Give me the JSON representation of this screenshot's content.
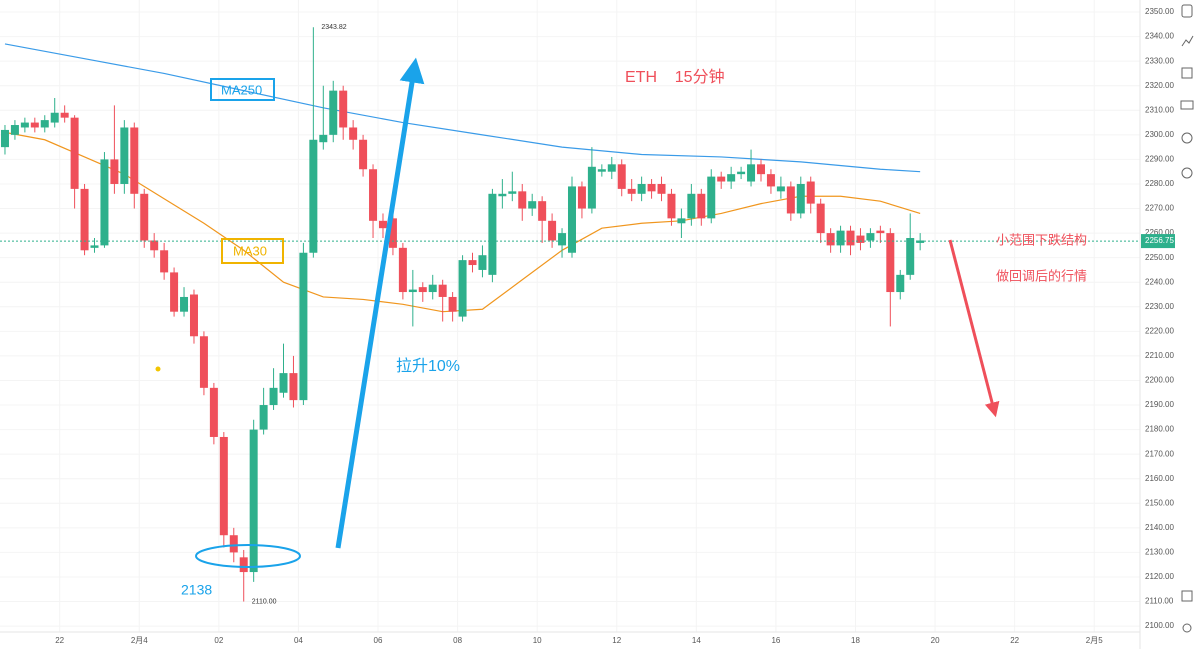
{
  "chart_data": {
    "type": "candlestick",
    "title": "ETH    15分钟",
    "up_color": "#2eb08c",
    "down_color": "#ef4f5a",
    "x": [
      0,
      1,
      2,
      3,
      4,
      5,
      6,
      7,
      8,
      9,
      10,
      11,
      12,
      13,
      14,
      15,
      16,
      17,
      18,
      19,
      20,
      21,
      22,
      23,
      24,
      25,
      26,
      27,
      28,
      29,
      30,
      31,
      32,
      33,
      34,
      35,
      36,
      37,
      38,
      39,
      40,
      41,
      42,
      43,
      44,
      45,
      46,
      47,
      48,
      49,
      50,
      51,
      52,
      53,
      54,
      55,
      56,
      57,
      58,
      59,
      60,
      61,
      62,
      63,
      64,
      65,
      66,
      67,
      68,
      69,
      70,
      71,
      72,
      73,
      74,
      75,
      76,
      77,
      78,
      79,
      80,
      81,
      82,
      83,
      84,
      85,
      86,
      87,
      88,
      89,
      90,
      91,
      92
    ],
    "open": [
      2295,
      2300,
      2303,
      2305,
      2303,
      2305,
      2309,
      2307,
      2278,
      2254,
      2255,
      2290,
      2280,
      2303,
      2276,
      2257,
      2253,
      2244,
      2228,
      2235,
      2218,
      2197,
      2177,
      2137,
      2128,
      2122,
      2180,
      2190,
      2195,
      2203,
      2192,
      2252,
      2297,
      2300,
      2318,
      2303,
      2298,
      2286,
      2265,
      2266,
      2254,
      2236,
      2238,
      2236,
      2239,
      2234,
      2226,
      2249,
      2245,
      2243,
      2275,
      2276,
      2277,
      2270,
      2273,
      2265,
      2255,
      2252,
      2279,
      2270,
      2285,
      2285,
      2288,
      2278,
      2276,
      2280,
      2280,
      2276,
      2264,
      2266,
      2276,
      2266,
      2283,
      2281,
      2284,
      2281,
      2288,
      2284,
      2277,
      2279,
      2268,
      2281,
      2272,
      2260,
      2255,
      2261,
      2259,
      2257,
      2261,
      2260,
      2236,
      2243,
      2256
    ],
    "high": [
      2304,
      2306,
      2307,
      2307,
      2308,
      2315,
      2312,
      2308,
      2280,
      2258,
      2293,
      2312,
      2306,
      2305,
      2278,
      2260,
      2256,
      2246,
      2238,
      2237,
      2220,
      2199,
      2179,
      2140,
      2131,
      2184,
      2197,
      2205,
      2215,
      2210,
      2256,
      2343.82,
      2320,
      2322,
      2320,
      2306,
      2300,
      2288,
      2268,
      2269,
      2256,
      2245,
      2240,
      2243,
      2241,
      2236,
      2251,
      2252,
      2255,
      2278,
      2282,
      2285,
      2280,
      2276,
      2275,
      2268,
      2262,
      2283,
      2281,
      2295,
      2288,
      2291,
      2290,
      2282,
      2283,
      2282,
      2283,
      2278,
      2270,
      2280,
      2278,
      2286,
      2285,
      2287,
      2287,
      2294,
      2290,
      2286,
      2283,
      2281,
      2283,
      2283,
      2274,
      2262,
      2263,
      2263,
      2262,
      2262,
      2263,
      2262,
      2245,
      2268,
      2260
    ],
    "low": [
      2292,
      2298,
      2301,
      2301,
      2301,
      2303,
      2305,
      2270,
      2251,
      2252,
      2254,
      2276,
      2276,
      2270,
      2254,
      2250,
      2241,
      2226,
      2226,
      2215,
      2194,
      2174,
      2132,
      2126,
      2110,
      2118,
      2178,
      2188,
      2193,
      2189,
      2190,
      2250,
      2294,
      2297,
      2298,
      2294,
      2283,
      2258,
      2258,
      2251,
      2233,
      2222,
      2232,
      2233,
      2224,
      2224,
      2224,
      2244,
      2242,
      2240,
      2270,
      2273,
      2265,
      2267,
      2256,
      2254,
      2250,
      2250,
      2266,
      2268,
      2283,
      2282,
      2275,
      2273,
      2273,
      2274,
      2273,
      2263,
      2258,
      2263,
      2263,
      2264,
      2278,
      2278,
      2282,
      2279,
      2281,
      2276,
      2274,
      2265,
      2266,
      2268,
      2256,
      2252,
      2252,
      2251,
      2253,
      2254,
      2256,
      2222,
      2233,
      2241,
      2253
    ],
    "close": [
      2302,
      2304,
      2305,
      2303,
      2306,
      2309,
      2307,
      2278,
      2253,
      2255,
      2290,
      2280,
      2303,
      2276,
      2257,
      2253,
      2244,
      2228,
      2234,
      2218,
      2197,
      2177,
      2137,
      2130,
      2122,
      2180,
      2190,
      2197,
      2203,
      2192,
      2252,
      2298,
      2300,
      2318,
      2303,
      2298,
      2286,
      2265,
      2262,
      2254,
      2236,
      2237,
      2236,
      2239,
      2234,
      2228,
      2249,
      2247,
      2251,
      2276,
      2276,
      2277,
      2270,
      2273,
      2265,
      2257,
      2260,
      2279,
      2270,
      2287,
      2286,
      2288,
      2278,
      2276,
      2280,
      2277,
      2276,
      2266,
      2266,
      2276,
      2266,
      2283,
      2281,
      2284,
      2285,
      2288,
      2284,
      2279,
      2279,
      2268,
      2280,
      2272,
      2260,
      2255,
      2261,
      2255,
      2256,
      2260,
      2260,
      2236,
      2243,
      2258,
      2257
    ],
    "series": [
      {
        "name": "MA250",
        "color": "#3a9be8",
        "x": [
          0,
          8,
          16,
          24,
          32,
          40,
          48,
          56,
          64,
          72,
          80,
          88,
          92
        ],
        "values": [
          2337,
          2331,
          2325,
          2318,
          2311,
          2305,
          2300,
          2295,
          2292,
          2291,
          2289,
          2286,
          2285
        ]
      },
      {
        "name": "MA30",
        "color": "#f0961e",
        "x": [
          0,
          4,
          8,
          12,
          16,
          20,
          24,
          28,
          32,
          36,
          40,
          44,
          48,
          52,
          56,
          60,
          64,
          68,
          72,
          76,
          80,
          84,
          88,
          92
        ],
        "values": [
          2301,
          2298,
          2291,
          2284,
          2274,
          2264,
          2253,
          2240,
          2234,
          2233,
          2231,
          2228,
          2229,
          2241,
          2253,
          2262,
          2264,
          2265,
          2268,
          2272,
          2275,
          2275,
          2273,
          2268
        ]
      }
    ],
    "last_price": 2256.75,
    "max_high": 2343.82,
    "min_low": {
      "value": 2110,
      "label": "2110.00"
    },
    "annotations": [
      "拉升10%",
      "2138",
      "小范围下跌结构",
      "做回调后的行情"
    ],
    "xlim": [
      -0.5,
      114.1
    ],
    "ylim": [
      2097.6,
      2354.9
    ],
    "xticks": [
      {
        "value": 5.5,
        "label": "22"
      },
      {
        "value": 13.5,
        "label": "2月4"
      },
      {
        "value": 21.5,
        "label": "02"
      },
      {
        "value": 29.5,
        "label": "04"
      },
      {
        "value": 37.5,
        "label": "06"
      },
      {
        "value": 45.5,
        "label": "08"
      },
      {
        "value": 53.5,
        "label": "10"
      },
      {
        "value": 61.5,
        "label": "12"
      },
      {
        "value": 69.5,
        "label": "14"
      },
      {
        "value": 77.5,
        "label": "16"
      },
      {
        "value": 85.5,
        "label": "18"
      },
      {
        "value": 93.5,
        "label": "20"
      },
      {
        "value": 101.5,
        "label": "22"
      },
      {
        "value": 109.5,
        "label": "2月5"
      }
    ],
    "yticks": [
      {
        "value": 2100,
        "label": "2100.00"
      },
      {
        "value": 2110,
        "label": "2110.00"
      },
      {
        "value": 2120,
        "label": "2120.00"
      },
      {
        "value": 2130,
        "label": "2130.00"
      },
      {
        "value": 2140,
        "label": "2140.00"
      },
      {
        "value": 2150,
        "label": "2150.00"
      },
      {
        "value": 2160,
        "label": "2160.00"
      },
      {
        "value": 2170,
        "label": "2170.00"
      },
      {
        "value": 2180,
        "label": "2180.00"
      },
      {
        "value": 2190,
        "label": "2190.00"
      },
      {
        "value": 2200,
        "label": "2200.00"
      },
      {
        "value": 2210,
        "label": "2210.00"
      },
      {
        "value": 2220,
        "label": "2220.00"
      },
      {
        "value": 2230,
        "label": "2230.00"
      },
      {
        "value": 2240,
        "label": "2240.00"
      },
      {
        "value": 2250,
        "label": "2250.00"
      },
      {
        "value": 2260,
        "label": "2260.00"
      },
      {
        "value": 2270,
        "label": "2270.00"
      },
      {
        "value": 2280,
        "label": "2280.00"
      },
      {
        "value": 2290,
        "label": "2290.00"
      },
      {
        "value": 2300,
        "label": "2300.00"
      },
      {
        "value": 2310,
        "label": "2310.00"
      },
      {
        "value": 2320,
        "label": "2320.00"
      },
      {
        "value": 2330,
        "label": "2330.00"
      },
      {
        "value": 2340,
        "label": "2340.00"
      },
      {
        "value": 2350,
        "label": "2350.00"
      }
    ],
    "grid": true
  }
}
